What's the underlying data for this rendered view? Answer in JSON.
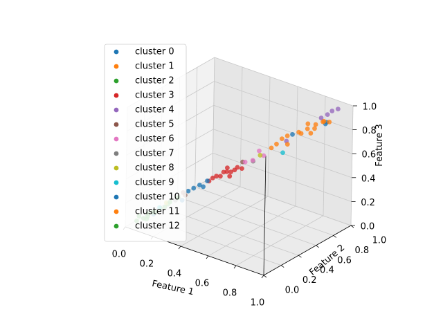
{
  "chart_data": {
    "type": "scatter",
    "title": "",
    "projection": "3d",
    "axes": {
      "x": {
        "label": "Feature 1",
        "lim": [
          0,
          1
        ],
        "ticks": [
          "0.0",
          "0.2",
          "0.4",
          "0.6",
          "0.8",
          "1.0"
        ]
      },
      "y": {
        "label": "Feature 2",
        "lim": [
          0,
          1
        ],
        "ticks": [
          "0.0",
          "0.2",
          "0.4",
          "0.6",
          "0.8",
          "1.0"
        ]
      },
      "z": {
        "label": "Feature 3",
        "lim": [
          0,
          1
        ],
        "ticks": [
          "0.0",
          "0.2",
          "0.4",
          "0.6",
          "0.8",
          "1.0"
        ]
      }
    },
    "grid": true,
    "legend": "upper-left",
    "series": [
      {
        "name": "cluster 0",
        "color": "#1f77b4",
        "points": [
          [
            0.3,
            0.3,
            0.32
          ],
          [
            0.33,
            0.32,
            0.35
          ],
          [
            0.36,
            0.36,
            0.38
          ],
          [
            0.28,
            0.27,
            0.3
          ],
          [
            0.35,
            0.33,
            0.34
          ]
        ]
      },
      {
        "name": "cluster 1",
        "color": "#ff7f0e",
        "points": [
          [
            0.8,
            0.8,
            0.81
          ],
          [
            0.78,
            0.76,
            0.78
          ],
          [
            0.84,
            0.83,
            0.85
          ],
          [
            0.86,
            0.88,
            0.86
          ],
          [
            0.75,
            0.78,
            0.77
          ],
          [
            0.82,
            0.85,
            0.8
          ],
          [
            0.88,
            0.86,
            0.88
          ],
          [
            0.79,
            0.82,
            0.84
          ],
          [
            0.83,
            0.79,
            0.79
          ],
          [
            0.9,
            0.89,
            0.87
          ]
        ]
      },
      {
        "name": "cluster 2",
        "color": "#2ca02c",
        "points": [
          [
            0.05,
            0.05,
            0.05
          ],
          [
            0.08,
            0.08,
            0.07
          ],
          [
            0.1,
            0.1,
            0.11
          ],
          [
            0.12,
            0.12,
            0.12
          ],
          [
            0.06,
            0.06,
            0.09
          ],
          [
            0.11,
            0.08,
            0.1
          ],
          [
            0.09,
            0.1,
            0.06
          ]
        ]
      },
      {
        "name": "cluster 3",
        "color": "#d62728",
        "points": [
          [
            0.4,
            0.4,
            0.42
          ],
          [
            0.42,
            0.45,
            0.44
          ],
          [
            0.45,
            0.44,
            0.46
          ],
          [
            0.48,
            0.48,
            0.47
          ],
          [
            0.38,
            0.39,
            0.4
          ],
          [
            0.44,
            0.46,
            0.48
          ],
          [
            0.5,
            0.48,
            0.5
          ],
          [
            0.41,
            0.43,
            0.41
          ],
          [
            0.46,
            0.47,
            0.45
          ],
          [
            0.36,
            0.38,
            0.37
          ],
          [
            0.47,
            0.44,
            0.43
          ],
          [
            0.52,
            0.5,
            0.49
          ]
        ]
      },
      {
        "name": "cluster 4",
        "color": "#9467bd",
        "points": [
          [
            0.88,
            0.9,
            0.92
          ],
          [
            0.9,
            0.92,
            0.95
          ],
          [
            0.93,
            0.94,
            0.97
          ],
          [
            0.86,
            0.86,
            0.9
          ],
          [
            0.7,
            0.72,
            0.7
          ]
        ]
      },
      {
        "name": "cluster 5",
        "color": "#8c564b",
        "points": [
          [
            0.25,
            0.26,
            0.28
          ],
          [
            0.5,
            0.54,
            0.52
          ],
          [
            0.27,
            0.25,
            0.27
          ]
        ]
      },
      {
        "name": "cluster 6",
        "color": "#e377c2",
        "points": [
          [
            0.56,
            0.56,
            0.55
          ],
          [
            0.6,
            0.62,
            0.58
          ],
          [
            0.53,
            0.52,
            0.54
          ],
          [
            0.58,
            0.6,
            0.62
          ]
        ]
      },
      {
        "name": "cluster 7",
        "color": "#7f7f7f",
        "points": [
          [
            0.22,
            0.22,
            0.22
          ],
          [
            0.55,
            0.58,
            0.53
          ]
        ]
      },
      {
        "name": "cluster 8",
        "color": "#bcbd22",
        "points": [
          [
            0.18,
            0.18,
            0.2
          ],
          [
            0.6,
            0.58,
            0.6
          ]
        ]
      },
      {
        "name": "cluster 9",
        "color": "#17becf",
        "points": [
          [
            0.7,
            0.68,
            0.62
          ],
          [
            0.15,
            0.15,
            0.16
          ]
        ]
      },
      {
        "name": "cluster 10",
        "color": "#1f77b4",
        "points": [
          [
            0.73,
            0.74,
            0.76
          ],
          [
            0.88,
            0.89,
            0.86
          ],
          [
            0.86,
            0.91,
            0.83
          ],
          [
            0.25,
            0.25,
            0.22
          ],
          [
            0.12,
            0.13,
            0.1
          ]
        ]
      },
      {
        "name": "cluster 11",
        "color": "#ff7f0e",
        "points": [
          [
            0.68,
            0.7,
            0.72
          ],
          [
            0.72,
            0.7,
            0.69
          ],
          [
            0.66,
            0.67,
            0.68
          ],
          [
            0.7,
            0.73,
            0.74
          ],
          [
            0.63,
            0.66,
            0.64
          ]
        ]
      },
      {
        "name": "cluster 12",
        "color": "#2ca02c",
        "points": [
          [
            0.15,
            0.16,
            0.15
          ],
          [
            0.18,
            0.2,
            0.18
          ],
          [
            0.2,
            0.19,
            0.21
          ],
          [
            0.14,
            0.12,
            0.13
          ],
          [
            0.22,
            0.24,
            0.23
          ],
          [
            0.24,
            0.22,
            0.25
          ],
          [
            0.17,
            0.18,
            0.16
          ]
        ]
      }
    ]
  }
}
